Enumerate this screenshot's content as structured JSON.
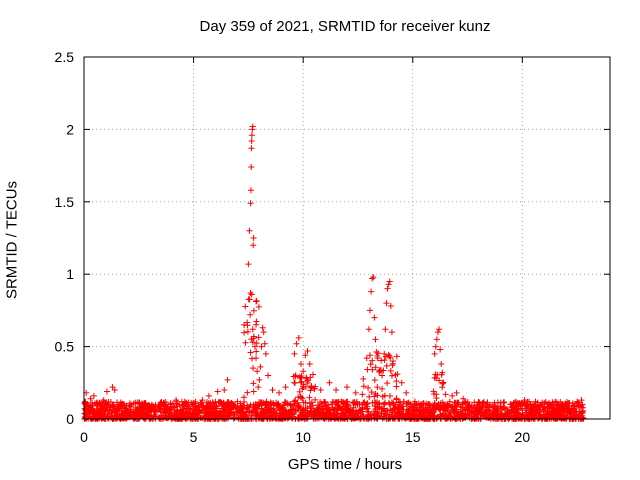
{
  "chart_data": {
    "type": "scatter",
    "title": "Day 359 of 2021, SRMTID for receiver kunz",
    "xlabel": "GPS time / hours",
    "ylabel": "SRMTID / TECUs",
    "xlim": [
      0,
      24
    ],
    "ylim": [
      0,
      2.5
    ],
    "xticks": [
      0,
      5,
      10,
      15,
      20
    ],
    "yticks": [
      0,
      0.5,
      1,
      1.5,
      2,
      2.5
    ],
    "ytick_labels": [
      "0",
      "0.5",
      "1",
      "1.5",
      "2",
      "2.5"
    ],
    "grid": true,
    "marker": "+",
    "marker_color": "#ff0000",
    "data_extent_hours": [
      0,
      22.8
    ],
    "baseline_band": {
      "low": 0.0,
      "high": 0.12,
      "typical": 0.05
    },
    "series": [
      {
        "name": "SRMTID",
        "points": [
          [
            0.05,
            0.12
          ],
          [
            0.1,
            0.18
          ],
          [
            0.2,
            0.09
          ],
          [
            0.3,
            0.14
          ],
          [
            0.45,
            0.16
          ],
          [
            0.7,
            0.11
          ],
          [
            0.9,
            0.13
          ],
          [
            1.05,
            0.19
          ],
          [
            1.3,
            0.22
          ],
          [
            1.4,
            0.2
          ],
          [
            1.6,
            0.1
          ],
          [
            4.2,
            0.13
          ],
          [
            4.6,
            0.12
          ],
          [
            5.4,
            0.13
          ],
          [
            5.7,
            0.16
          ],
          [
            6.1,
            0.19
          ],
          [
            6.4,
            0.2
          ],
          [
            6.55,
            0.27
          ],
          [
            7.0,
            0.12
          ],
          [
            7.3,
            0.15
          ],
          [
            7.5,
            1.07
          ],
          [
            7.55,
            1.3
          ],
          [
            7.6,
            1.49
          ],
          [
            7.62,
            1.58
          ],
          [
            7.63,
            1.74
          ],
          [
            7.64,
            1.87
          ],
          [
            7.65,
            1.92
          ],
          [
            7.66,
            1.96
          ],
          [
            7.68,
            2.0
          ],
          [
            7.7,
            2.02
          ],
          [
            7.72,
            1.2
          ],
          [
            7.74,
            1.25
          ],
          [
            7.6,
            0.87
          ],
          [
            7.65,
            0.86
          ],
          [
            7.58,
            0.72
          ],
          [
            7.7,
            0.62
          ],
          [
            7.75,
            0.57
          ],
          [
            7.8,
            0.5
          ],
          [
            7.85,
            0.42
          ],
          [
            7.9,
            0.33
          ],
          [
            7.95,
            0.22
          ],
          [
            8.0,
            0.27
          ],
          [
            8.05,
            0.36
          ],
          [
            8.1,
            0.5
          ],
          [
            8.15,
            0.63
          ],
          [
            8.2,
            0.6
          ],
          [
            8.25,
            0.52
          ],
          [
            8.3,
            0.45
          ],
          [
            8.4,
            0.3
          ],
          [
            8.6,
            0.2
          ],
          [
            8.9,
            0.18
          ],
          [
            9.2,
            0.22
          ],
          [
            9.6,
            0.45
          ],
          [
            9.7,
            0.52
          ],
          [
            9.8,
            0.56
          ],
          [
            9.9,
            0.38
          ],
          [
            10.0,
            0.33
          ],
          [
            10.1,
            0.44
          ],
          [
            10.2,
            0.47
          ],
          [
            10.3,
            0.38
          ],
          [
            10.5,
            0.21
          ],
          [
            10.8,
            0.2
          ],
          [
            11.2,
            0.25
          ],
          [
            11.5,
            0.2
          ],
          [
            12.0,
            0.22
          ],
          [
            12.4,
            0.18
          ],
          [
            12.7,
            0.17
          ],
          [
            12.9,
            0.42
          ],
          [
            13.0,
            0.62
          ],
          [
            13.05,
            0.75
          ],
          [
            13.1,
            0.88
          ],
          [
            13.15,
            0.97
          ],
          [
            13.2,
            0.98
          ],
          [
            13.25,
            0.7
          ],
          [
            13.3,
            0.55
          ],
          [
            13.4,
            0.42
          ],
          [
            13.5,
            0.33
          ],
          [
            13.6,
            0.3
          ],
          [
            13.7,
            0.45
          ],
          [
            13.75,
            0.62
          ],
          [
            13.8,
            0.8
          ],
          [
            13.85,
            0.9
          ],
          [
            13.9,
            0.93
          ],
          [
            13.95,
            0.95
          ],
          [
            14.0,
            0.78
          ],
          [
            14.05,
            0.6
          ],
          [
            14.1,
            0.4
          ],
          [
            14.3,
            0.31
          ],
          [
            14.5,
            0.25
          ],
          [
            14.7,
            0.18
          ],
          [
            15.1,
            0.12
          ],
          [
            15.5,
            0.11
          ],
          [
            16.0,
            0.45
          ],
          [
            16.05,
            0.5
          ],
          [
            16.1,
            0.55
          ],
          [
            16.15,
            0.6
          ],
          [
            16.2,
            0.62
          ],
          [
            16.25,
            0.48
          ],
          [
            16.3,
            0.38
          ],
          [
            16.35,
            0.32
          ],
          [
            16.4,
            0.25
          ],
          [
            16.5,
            0.17
          ],
          [
            16.8,
            0.16
          ],
          [
            17.0,
            0.18
          ],
          [
            17.3,
            0.14
          ],
          [
            19.6,
            0.11
          ],
          [
            20.1,
            0.13
          ],
          [
            20.6,
            0.12
          ],
          [
            21.0,
            0.11
          ],
          [
            21.5,
            0.12
          ],
          [
            22.0,
            0.1
          ],
          [
            22.5,
            0.12
          ],
          [
            22.7,
            0.13
          ]
        ]
      }
    ],
    "event_windows": [
      {
        "center": 7.7,
        "width": 0.8,
        "peak": 2.02
      },
      {
        "center": 10.0,
        "width": 1.2,
        "peak": 0.56
      },
      {
        "center": 13.5,
        "width": 1.6,
        "peak": 0.98
      },
      {
        "center": 16.2,
        "width": 0.6,
        "peak": 0.62
      }
    ]
  }
}
